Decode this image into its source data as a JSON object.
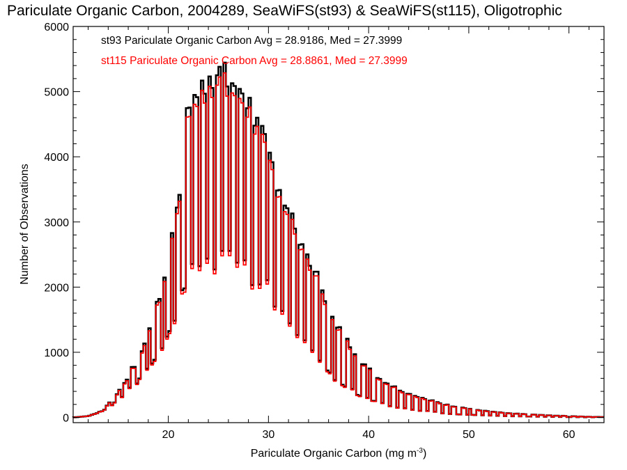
{
  "chart_data": {
    "type": "histogram",
    "title": "Pariculate Organic Carbon, 2004289, SeaWiFS(st93) & SeaWiFS(st115), Oligotrophic",
    "xlabel_main": "Pariculate Organic Carbon (mg m",
    "xlabel_sup": "-3",
    "xlabel_close": ")",
    "ylabel": "Number of Observations",
    "xlim": [
      10.5,
      63.5
    ],
    "ylim": [
      -80,
      6000
    ],
    "xticks": [
      20,
      30,
      40,
      50,
      60
    ],
    "yticks": [
      0,
      1000,
      2000,
      3000,
      4000,
      5000,
      6000
    ],
    "x_minor_step": 2,
    "y_minor_step": 200,
    "bin_width": 0.25,
    "grid": false,
    "legend_placement": "top-left",
    "series": [
      {
        "name": "st93",
        "color": "#000000",
        "label": "st93 Pariculate Organic Carbon Avg = 28.9186, Med = 27.3999"
      },
      {
        "name": "st115",
        "color": "#ff0000",
        "label": "st115 Pariculate Organic Carbon Avg = 28.8861, Med = 27.3999"
      }
    ],
    "envelope_points": [
      [
        10.5,
        0
      ],
      [
        12,
        20
      ],
      [
        13,
        70
      ],
      [
        14,
        200
      ],
      [
        15,
        380
      ],
      [
        16,
        620
      ],
      [
        17,
        880
      ],
      [
        18,
        1250
      ],
      [
        19,
        1700
      ],
      [
        20,
        2300
      ],
      [
        21,
        3300
      ],
      [
        22,
        4600
      ],
      [
        23,
        4850
      ],
      [
        24,
        5100
      ],
      [
        25,
        5150
      ],
      [
        26,
        5000
      ],
      [
        27,
        4950
      ],
      [
        28,
        4700
      ],
      [
        29,
        4300
      ],
      [
        30,
        3900
      ],
      [
        31,
        3500
      ],
      [
        32,
        3100
      ],
      [
        33,
        2750
      ],
      [
        34,
        2400
      ],
      [
        35,
        2050
      ],
      [
        36,
        1650
      ],
      [
        37,
        1350
      ],
      [
        38,
        1100
      ],
      [
        39,
        900
      ],
      [
        40,
        720
      ],
      [
        41,
        600
      ],
      [
        42,
        500
      ],
      [
        43,
        420
      ],
      [
        44,
        360
      ],
      [
        45,
        300
      ],
      [
        46,
        260
      ],
      [
        47,
        220
      ],
      [
        48,
        180
      ],
      [
        50,
        130
      ],
      [
        52,
        90
      ],
      [
        54,
        60
      ],
      [
        56,
        45
      ],
      [
        58,
        30
      ],
      [
        60,
        20
      ],
      [
        62,
        10
      ],
      [
        63.5,
        5
      ]
    ],
    "dip_points": [
      [
        13.5,
        0.25
      ],
      [
        14.5,
        0.3
      ],
      [
        15.3,
        0.35
      ],
      [
        16.1,
        0.35
      ],
      [
        17.0,
        0.4
      ],
      [
        17.8,
        0.4
      ],
      [
        18.5,
        0.42
      ],
      [
        19.3,
        0.45
      ],
      [
        20.0,
        0.45
      ],
      [
        20.7,
        0.5
      ],
      [
        21.5,
        0.52
      ],
      [
        22.3,
        0.5
      ],
      [
        23.1,
        0.55
      ],
      [
        23.9,
        0.52
      ],
      [
        24.6,
        0.55
      ],
      [
        25.4,
        0.52
      ],
      [
        26.2,
        0.5
      ],
      [
        26.9,
        0.55
      ],
      [
        27.6,
        0.5
      ],
      [
        28.4,
        0.55
      ],
      [
        29.2,
        0.55
      ],
      [
        29.9,
        0.5
      ],
      [
        30.6,
        0.55
      ],
      [
        31.4,
        0.52
      ],
      [
        32.2,
        0.55
      ],
      [
        32.9,
        0.58
      ],
      [
        33.7,
        0.55
      ],
      [
        34.4,
        0.58
      ],
      [
        35.2,
        0.58
      ],
      [
        36.0,
        0.6
      ],
      [
        36.7,
        0.6
      ],
      [
        37.5,
        0.62
      ],
      [
        38.3,
        0.6
      ],
      [
        39.0,
        0.62
      ],
      [
        39.8,
        0.62
      ],
      [
        40.5,
        0.62
      ],
      [
        41.3,
        0.62
      ],
      [
        42.1,
        0.65
      ],
      [
        42.8,
        0.65
      ],
      [
        43.6,
        0.65
      ],
      [
        44.4,
        0.65
      ],
      [
        45.1,
        0.65
      ],
      [
        45.9,
        0.65
      ],
      [
        46.6,
        0.65
      ],
      [
        47.4,
        0.7
      ],
      [
        48.2,
        0.7
      ],
      [
        49.0,
        0.7
      ],
      [
        49.8,
        0.7
      ],
      [
        50.5,
        0.7
      ],
      [
        51.3,
        0.7
      ],
      [
        52.1,
        0.7
      ],
      [
        52.9,
        0.7
      ],
      [
        53.7,
        0.7
      ],
      [
        54.4,
        0.7
      ],
      [
        55.2,
        0.7
      ],
      [
        56.0,
        0.7
      ],
      [
        56.8,
        0.7
      ],
      [
        57.6,
        0.7
      ],
      [
        58.4,
        0.7
      ],
      [
        59.2,
        0.7
      ],
      [
        60.0,
        0.7
      ],
      [
        60.8,
        0.7
      ],
      [
        61.6,
        0.7
      ],
      [
        62.4,
        0.7
      ]
    ]
  }
}
